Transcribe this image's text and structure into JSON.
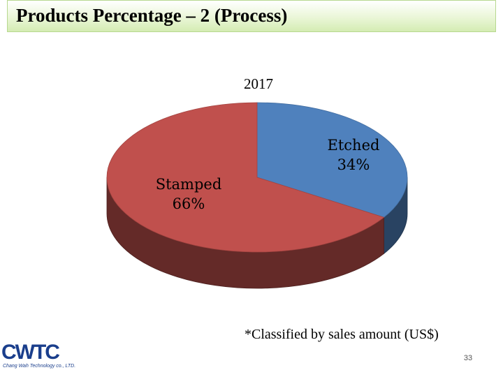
{
  "header": {
    "title": "Products Percentage – 2 (Process)"
  },
  "chart_data": {
    "type": "pie",
    "title": "2017",
    "categories": [
      "Etched",
      "Stamped"
    ],
    "values": [
      34,
      66
    ],
    "labels": [
      {
        "name": "Etched",
        "value": "34%"
      },
      {
        "name": "Stamped",
        "value": "66%"
      }
    ],
    "colors": {
      "Etched": "#4f81bd",
      "Stamped": "#c0504d"
    },
    "style": "3d-pie"
  },
  "footnote": "*Classified by sales amount (US$)",
  "page_number": "33",
  "logo": {
    "name": "CWTC",
    "tagline": "Chang Wah Technology co., LTD."
  }
}
